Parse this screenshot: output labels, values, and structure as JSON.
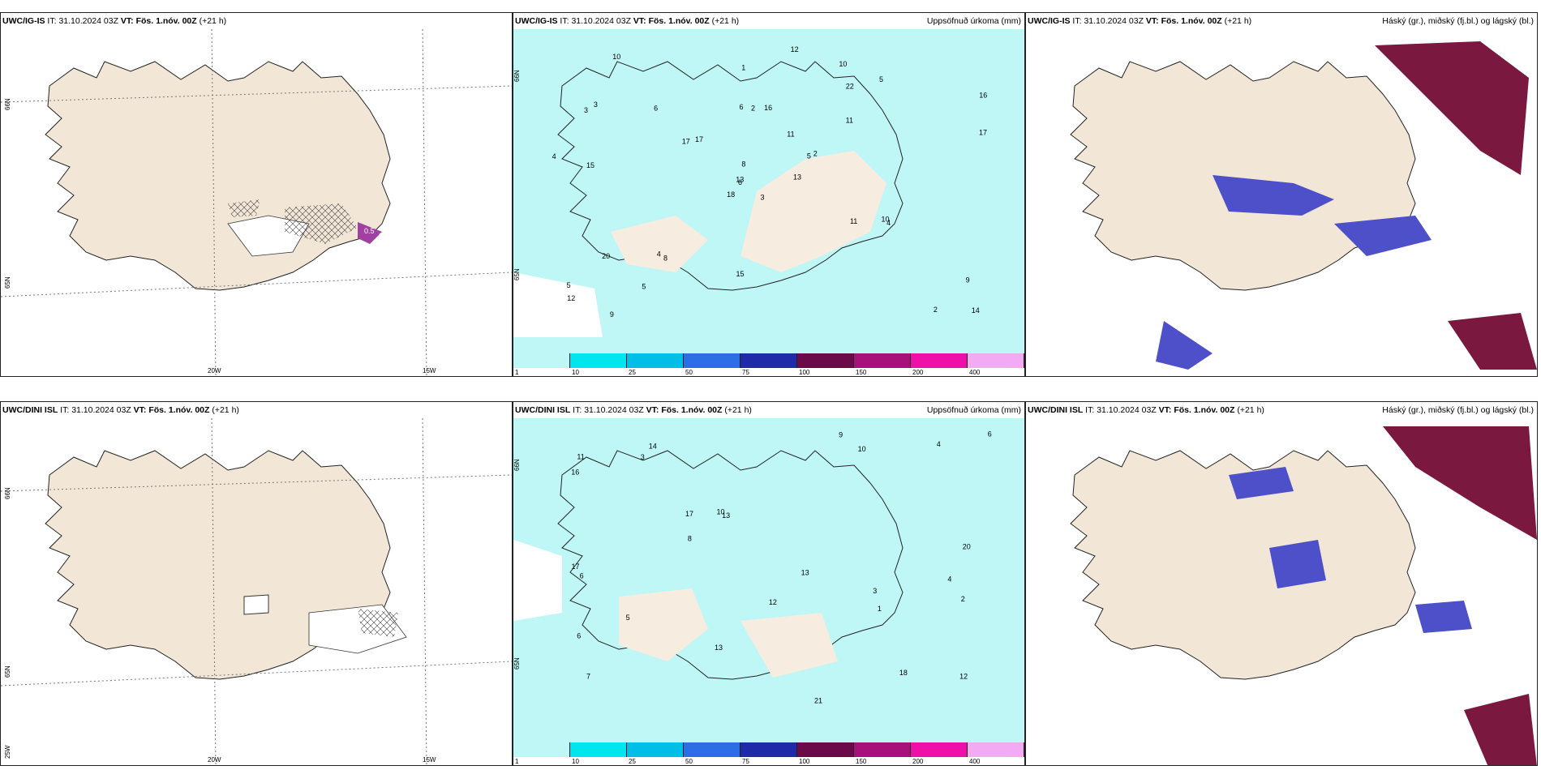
{
  "panels": [
    {
      "model": "UWC/IG-IS",
      "it_label": "IT:",
      "it": "31.10.2024 03Z",
      "vt_label": "VT:",
      "vt": "Fös. 1.nóv. 00Z",
      "lead": "(+21 h)",
      "title": ""
    },
    {
      "model": "UWC/IG-IS",
      "it_label": "IT:",
      "it": "31.10.2024 03Z",
      "vt_label": "VT:",
      "vt": "Fös. 1.nóv. 00Z",
      "lead": "(+21 h)",
      "title": "Uppsöfnuð úrkoma (mm)"
    },
    {
      "model": "UWC/IG-IS",
      "it_label": "IT:",
      "it": "31.10.2024 03Z",
      "vt_label": "VT:",
      "vt": "Fös. 1.nóv. 00Z",
      "lead": "(+21 h)",
      "title": "Háský (gr.), miðský (fj.bl.) og lágský (bl.)"
    },
    {
      "model": "UWC/DINI ISL",
      "it_label": "IT:",
      "it": "31.10.2024 03Z",
      "vt_label": "VT:",
      "vt": "Fös. 1.nóv. 00Z",
      "lead": "(+21 h)",
      "title": ""
    },
    {
      "model": "UWC/DINI ISL",
      "it_label": "IT:",
      "it": "31.10.2024 03Z",
      "vt_label": "VT:",
      "vt": "Fös. 1.nóv. 00Z",
      "lead": "(+21 h)",
      "title": "Uppsöfnuð úrkoma (mm)"
    },
    {
      "model": "UWC/DINI ISL",
      "it_label": "IT:",
      "it": "31.10.2024 03Z",
      "vt_label": "VT:",
      "vt": "Fös. 1.nóv. 00Z",
      "lead": "(+21 h)",
      "title": "Háský (gr.), miðský (fj.bl.) og lágský (bl.)"
    }
  ],
  "axes": {
    "lat_65": "65N",
    "lat_66": "66N",
    "lon_25": "25W",
    "lon_20": "20W",
    "lon_15": "15W"
  },
  "legend": {
    "ticks": [
      "1",
      "10",
      "25",
      "50",
      "75",
      "100",
      "150",
      "200",
      "400"
    ],
    "colors": [
      "#bff7f7",
      "#00e6ee",
      "#00bfe6",
      "#2d6ee6",
      "#1e2aa8",
      "#6b0a4a",
      "#a8107a",
      "#ee10a8",
      "#f2aaf2"
    ]
  },
  "wind_labels_ig": [
    "0.5",
    "0.5"
  ],
  "precip_ig": [
    "3",
    "3",
    "6",
    "5",
    "5",
    "8",
    "10",
    "16",
    "22",
    "13",
    "10",
    "14",
    "15",
    "16",
    "18",
    "11",
    "9",
    "6",
    "11",
    "20",
    "17",
    "12",
    "5",
    "2",
    "2",
    "4",
    "3",
    "1",
    "4",
    "11",
    "17",
    "13",
    "15",
    "8",
    "6",
    "5",
    "4",
    "2",
    "9",
    "10",
    "12",
    "17"
  ],
  "precip_dini": [
    "3",
    "4",
    "7",
    "14",
    "13",
    "18",
    "6",
    "10",
    "17",
    "21",
    "16",
    "17",
    "11",
    "12",
    "13",
    "20",
    "12",
    "13",
    "10",
    "5",
    "6",
    "4",
    "8",
    "2",
    "9",
    "3",
    "1",
    "6"
  ],
  "colors": {
    "land": "#f2e6d6",
    "sea": "#ffffff",
    "precip_light": "#bff7f7",
    "coast": "#222222"
  }
}
